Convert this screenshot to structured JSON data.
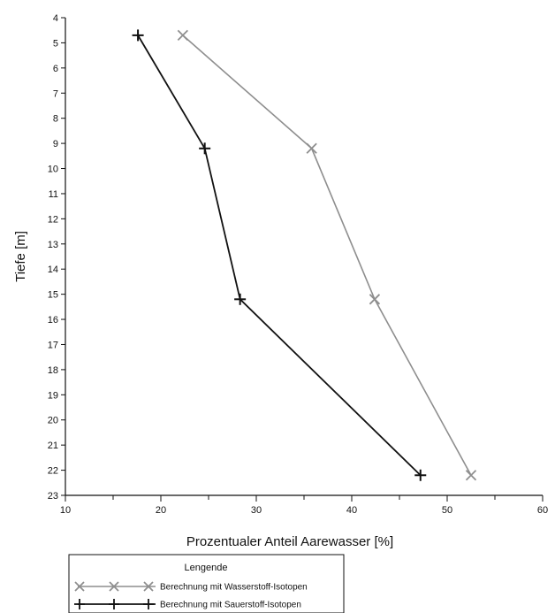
{
  "chart_data": {
    "type": "line",
    "xlabel": "Prozentualer Anteil Aarewasser [%]",
    "ylabel": "Tiefe [m]",
    "xlim": [
      10,
      60
    ],
    "ylim": [
      4,
      23
    ],
    "y_inverted": true,
    "x_ticks": [
      10,
      20,
      30,
      40,
      50,
      60
    ],
    "y_ticks": [
      4,
      5,
      6,
      7,
      8,
      9,
      10,
      11,
      12,
      13,
      14,
      15,
      16,
      17,
      18,
      19,
      20,
      21,
      22,
      23
    ],
    "grid": false,
    "legend": {
      "title": "Lengende",
      "placement": "bottom-left"
    },
    "series": [
      {
        "name": "Berechnung mit Wasserstoff-Isotopen",
        "marker": "x",
        "color": "#8e8e8e",
        "points": [
          {
            "x": 22.3,
            "y": 4.7
          },
          {
            "x": 35.8,
            "y": 9.2
          },
          {
            "x": 42.4,
            "y": 15.2
          },
          {
            "x": 52.5,
            "y": 22.2
          }
        ]
      },
      {
        "name": "Berechnung mit Sauerstoff-Isotopen",
        "marker": "+",
        "color": "#111111",
        "points": [
          {
            "x": 17.6,
            "y": 4.7
          },
          {
            "x": 24.6,
            "y": 9.2
          },
          {
            "x": 28.3,
            "y": 15.2
          },
          {
            "x": 47.2,
            "y": 22.2
          }
        ]
      }
    ]
  }
}
